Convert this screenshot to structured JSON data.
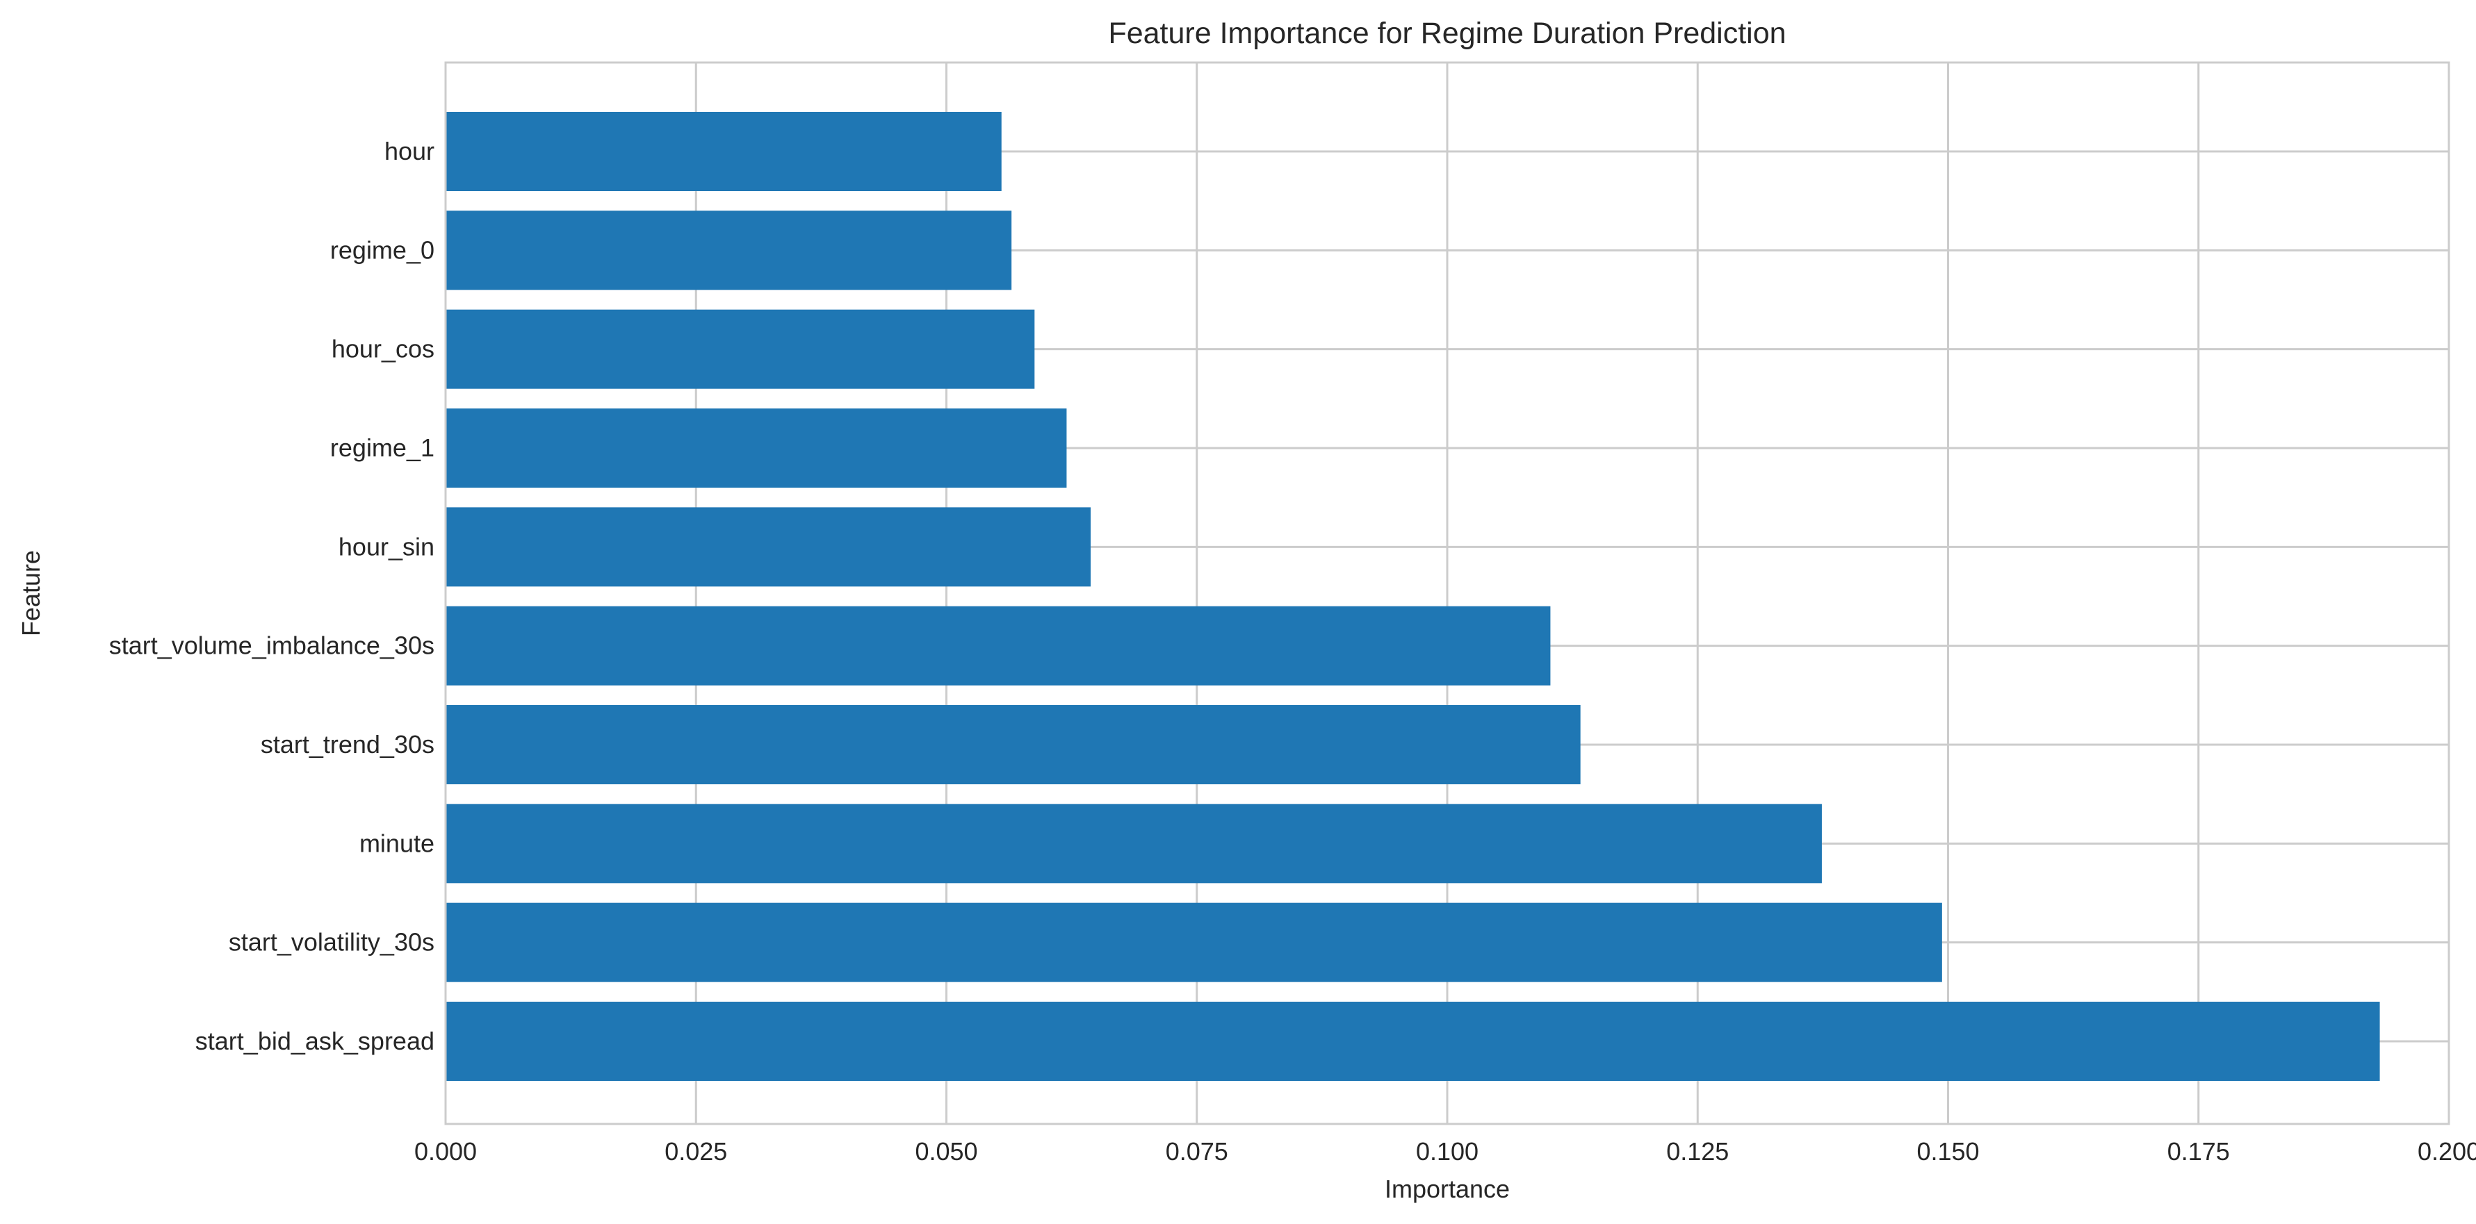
{
  "chart_data": {
    "type": "bar",
    "orientation": "horizontal",
    "title": "Feature Importance for Regime Duration Prediction",
    "xlabel": "Importance",
    "ylabel": "Feature",
    "xlim": [
      0,
      0.2
    ],
    "xticks": [
      0.0,
      0.025,
      0.05,
      0.075,
      0.1,
      0.125,
      0.15,
      0.175,
      0.2
    ],
    "xtick_labels": [
      "0.000",
      "0.025",
      "0.050",
      "0.075",
      "0.100",
      "0.125",
      "0.150",
      "0.175",
      "0.200"
    ],
    "grid": true,
    "bar_color": "#1f77b4",
    "categories": [
      "hour",
      "regime_0",
      "hour_cos",
      "regime_1",
      "hour_sin",
      "start_volume_imbalance_30s",
      "start_trend_30s",
      "minute",
      "start_volatility_30s",
      "start_bid_ask_spread"
    ],
    "values": [
      0.0555,
      0.0565,
      0.0588,
      0.062,
      0.0644,
      0.1103,
      0.1133,
      0.1374,
      0.1494,
      0.1931
    ]
  }
}
